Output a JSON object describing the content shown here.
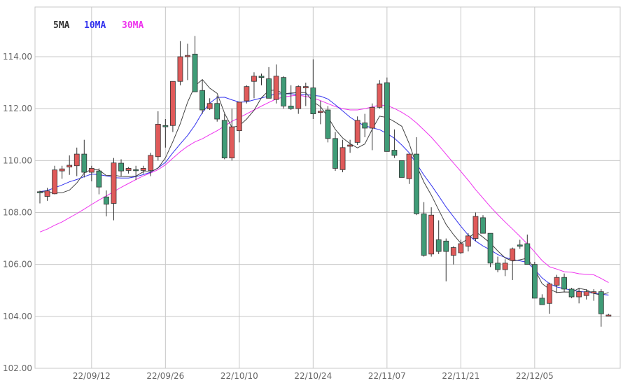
{
  "chart_data": {
    "type": "candlestick",
    "title": "",
    "xlabel": "",
    "ylabel": "",
    "ylim": [
      102,
      115.5
    ],
    "y_ticks": [
      "102.00",
      "104.00",
      "106.00",
      "108.00",
      "110.00",
      "112.00",
      "114.00"
    ],
    "x_tick_labels": [
      "22/09/12",
      "22/09/26",
      "22/10/10",
      "22/10/24",
      "22/11/07",
      "22/11/21",
      "22/12/05"
    ],
    "x_tick_index": [
      7,
      17,
      27,
      37,
      47,
      57,
      67
    ],
    "grid": true,
    "colors": {
      "up": "#e05a5a",
      "down": "#3f9c77",
      "candle_outline": "#333333",
      "grid": "#c8c8c8",
      "ma5": "#444444",
      "ma10": "#4040e0",
      "ma30": "#ff44ff"
    },
    "legend": [
      {
        "name": "5MA",
        "color": "#333333"
      },
      {
        "name": "10MA",
        "color": "#3333ee"
      },
      {
        "name": "30MA",
        "color": "#ee33ee"
      }
    ],
    "candles": [
      [
        108.8,
        108.84,
        108.35,
        108.76
      ],
      [
        108.62,
        108.95,
        108.45,
        108.83
      ],
      [
        108.72,
        109.8,
        108.7,
        109.64
      ],
      [
        109.6,
        109.8,
        109.3,
        109.68
      ],
      [
        109.75,
        110.2,
        109.45,
        109.82
      ],
      [
        109.8,
        110.5,
        109.4,
        110.25
      ],
      [
        110.25,
        110.8,
        109.35,
        109.55
      ],
      [
        109.55,
        109.8,
        109.2,
        109.7
      ],
      [
        109.6,
        109.7,
        108.7,
        108.98
      ],
      [
        108.6,
        108.85,
        107.85,
        108.32
      ],
      [
        108.35,
        110.1,
        107.7,
        109.91
      ],
      [
        109.9,
        110.05,
        109.4,
        109.6
      ],
      [
        109.62,
        109.75,
        109.5,
        109.7
      ],
      [
        109.65,
        109.8,
        109.25,
        109.62
      ],
      [
        109.62,
        109.8,
        109.5,
        109.7
      ],
      [
        109.62,
        110.3,
        109.4,
        110.2
      ],
      [
        110.15,
        111.9,
        110.0,
        111.4
      ],
      [
        111.35,
        111.6,
        110.5,
        111.3
      ],
      [
        111.35,
        113.0,
        111.1,
        113.05
      ],
      [
        113.05,
        114.6,
        112.9,
        114.0
      ],
      [
        114.0,
        114.5,
        113.1,
        114.05
      ],
      [
        114.1,
        114.8,
        112.7,
        112.65
      ],
      [
        112.7,
        113.1,
        111.8,
        111.95
      ],
      [
        112.0,
        112.4,
        111.95,
        112.2
      ],
      [
        112.2,
        112.5,
        111.5,
        111.6
      ],
      [
        111.55,
        111.8,
        110.05,
        110.1
      ],
      [
        110.1,
        112.0,
        110.0,
        111.3
      ],
      [
        111.15,
        112.2,
        110.7,
        112.25
      ],
      [
        112.3,
        112.9,
        112.2,
        112.85
      ],
      [
        113.05,
        113.4,
        112.4,
        113.25
      ],
      [
        113.25,
        113.35,
        112.9,
        113.2
      ],
      [
        113.15,
        113.6,
        112.4,
        112.4
      ],
      [
        112.35,
        113.7,
        112.2,
        113.25
      ],
      [
        113.2,
        113.25,
        112.0,
        112.1
      ],
      [
        112.1,
        112.9,
        111.95,
        112.0
      ],
      [
        112.0,
        112.9,
        111.8,
        112.85
      ],
      [
        112.8,
        113.0,
        112.1,
        112.85
      ],
      [
        112.8,
        113.9,
        111.6,
        111.8
      ],
      [
        111.85,
        112.3,
        111.4,
        111.9
      ],
      [
        111.95,
        112.1,
        110.7,
        110.85
      ],
      [
        110.85,
        111.1,
        109.6,
        109.7
      ],
      [
        109.65,
        110.8,
        109.55,
        110.5
      ],
      [
        110.55,
        110.8,
        110.3,
        110.6
      ],
      [
        110.7,
        111.7,
        110.6,
        111.55
      ],
      [
        111.45,
        111.8,
        110.9,
        111.25
      ],
      [
        111.25,
        112.2,
        110.4,
        112.05
      ],
      [
        112.05,
        113.1,
        112.0,
        112.95
      ],
      [
        113.0,
        113.2,
        110.4,
        110.35
      ],
      [
        110.4,
        111.2,
        110.1,
        110.2
      ],
      [
        110.0,
        109.9,
        109.4,
        109.35
      ],
      [
        109.3,
        110.2,
        109.1,
        110.25
      ],
      [
        110.25,
        110.9,
        107.9,
        107.95
      ],
      [
        107.95,
        108.4,
        106.3,
        106.35
      ],
      [
        106.4,
        108.2,
        106.3,
        107.9
      ],
      [
        106.95,
        107.7,
        106.4,
        106.5
      ],
      [
        106.9,
        107.0,
        105.35,
        106.5
      ],
      [
        106.35,
        106.7,
        106.0,
        106.65
      ],
      [
        106.45,
        106.95,
        106.4,
        106.8
      ],
      [
        106.7,
        107.2,
        106.5,
        107.1
      ],
      [
        107.0,
        108.0,
        106.9,
        107.85
      ],
      [
        107.8,
        107.9,
        107.2,
        107.2
      ],
      [
        107.2,
        107.2,
        105.9,
        106.05
      ],
      [
        106.05,
        106.3,
        105.7,
        105.8
      ],
      [
        105.8,
        106.2,
        105.55,
        106.05
      ],
      [
        106.15,
        106.65,
        105.4,
        106.6
      ],
      [
        106.75,
        106.95,
        106.6,
        106.7
      ],
      [
        106.8,
        107.15,
        106.0,
        106.0
      ],
      [
        106.0,
        106.1,
        104.7,
        104.7
      ],
      [
        104.7,
        104.85,
        104.45,
        104.45
      ],
      [
        104.5,
        105.3,
        104.1,
        105.25
      ],
      [
        105.2,
        105.6,
        104.9,
        105.5
      ],
      [
        105.5,
        105.65,
        104.95,
        105.05
      ],
      [
        105.05,
        105.1,
        104.7,
        104.75
      ],
      [
        104.75,
        105.1,
        104.5,
        104.95
      ],
      [
        104.8,
        105.05,
        104.65,
        104.95
      ],
      [
        104.9,
        105.05,
        104.6,
        104.95
      ],
      [
        104.95,
        105.05,
        103.6,
        104.1
      ],
      [
        104.05,
        104.1,
        104.0,
        104.05
      ]
    ],
    "series": [
      {
        "name": "5MA",
        "values": [
          108.8,
          108.79,
          108.76,
          108.76,
          108.86,
          109.14,
          109.52,
          109.66,
          109.64,
          109.42,
          109.44,
          109.39,
          109.38,
          109.4,
          109.57,
          109.57,
          109.71,
          110.11,
          110.73,
          111.42,
          112.25,
          112.88,
          113.12,
          112.79,
          112.59,
          111.82,
          111.28,
          111.34,
          111.6,
          111.94,
          112.42,
          112.7,
          112.72,
          112.57,
          112.6,
          112.62,
          112.62,
          112.26,
          112.08,
          111.68,
          111.2,
          110.87,
          110.65,
          110.49,
          110.64,
          111.21,
          111.71,
          111.66,
          111.5,
          111.32,
          110.66,
          109.81,
          109.17,
          108.67,
          108.1,
          107.54,
          107.15,
          106.81,
          106.99,
          107.26,
          107.05,
          106.82,
          106.52,
          106.25,
          106.13,
          106.18,
          106.24,
          105.81,
          105.26,
          105.05,
          104.92,
          104.94,
          104.93,
          105.08,
          105.02,
          104.88,
          104.82,
          104.92
        ]
      },
      {
        "name": "10MA",
        "values": [
          108.8,
          108.85,
          108.95,
          109.06,
          109.18,
          109.27,
          109.38,
          109.48,
          109.46,
          109.41,
          109.34,
          109.33,
          109.33,
          109.38,
          109.46,
          109.55,
          109.72,
          109.93,
          110.3,
          110.64,
          110.97,
          111.37,
          111.85,
          112.21,
          112.43,
          112.44,
          112.34,
          112.25,
          112.26,
          112.34,
          112.41,
          112.49,
          112.57,
          112.57,
          112.57,
          112.55,
          112.54,
          112.51,
          112.48,
          112.37,
          112.15,
          111.91,
          111.67,
          111.48,
          111.34,
          111.26,
          111.19,
          111.04,
          110.86,
          110.6,
          110.3,
          109.88,
          109.44,
          109.05,
          108.64,
          108.21,
          107.84,
          107.47,
          107.13,
          106.9,
          106.71,
          106.56,
          106.38,
          106.27,
          106.19,
          106.14,
          106.08,
          105.8,
          105.48,
          105.26,
          105.13,
          105.07,
          105.01,
          104.96,
          104.93,
          104.9,
          104.85,
          104.82
        ]
      },
      {
        "name": "30MA",
        "values": [
          107.25,
          107.36,
          107.51,
          107.64,
          107.8,
          107.96,
          108.13,
          108.31,
          108.48,
          108.64,
          108.8,
          108.97,
          109.12,
          109.27,
          109.41,
          109.52,
          109.65,
          109.84,
          110.09,
          110.34,
          110.55,
          110.72,
          110.84,
          111.0,
          111.15,
          111.33,
          111.51,
          111.65,
          111.8,
          111.95,
          112.1,
          112.24,
          112.37,
          112.45,
          112.49,
          112.52,
          112.47,
          112.41,
          112.31,
          112.19,
          112.08,
          112.0,
          111.95,
          111.95,
          112.0,
          112.07,
          112.14,
          112.12,
          112.01,
          111.86,
          111.68,
          111.45,
          111.18,
          110.9,
          110.58,
          110.24,
          109.91,
          109.58,
          109.24,
          108.88,
          108.55,
          108.22,
          107.92,
          107.63,
          107.36,
          107.08,
          106.79,
          106.48,
          106.15,
          105.91,
          105.82,
          105.72,
          105.7,
          105.64,
          105.62,
          105.6,
          105.46,
          105.3
        ]
      }
    ]
  }
}
